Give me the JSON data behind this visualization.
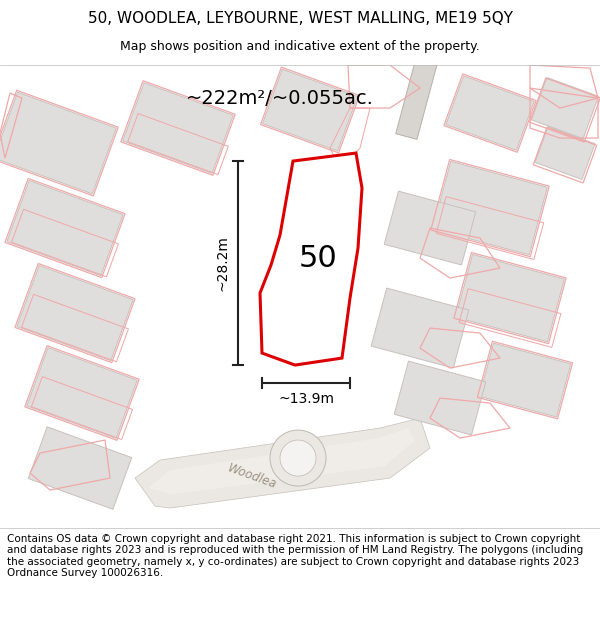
{
  "title": "50, WOODLEA, LEYBOURNE, WEST MALLING, ME19 5QY",
  "subtitle": "Map shows position and indicative extent of the property.",
  "footer": "Contains OS data © Crown copyright and database right 2021. This information is subject to Crown copyright and database rights 2023 and is reproduced with the permission of HM Land Registry. The polygons (including the associated geometry, namely x, y co-ordinates) are subject to Crown copyright and database rights 2023 Ordnance Survey 100026316.",
  "area_label": "~222m²/~0.055ac.",
  "width_label": "~13.9m",
  "height_label": "~28.2m",
  "plot_number": "50",
  "map_bg": "#ffffff",
  "building_fill": "#e0dedd",
  "building_edge": "#c8c0bc",
  "highlight_fill": "#ffffff",
  "highlight_edge": "#dd0000",
  "highlight_lw": 2.2,
  "plot_edge": "#f0a8a8",
  "plot_lw": 0.9,
  "dim_color": "#222222",
  "road_label": "Woodlea",
  "road_fill": "#e8e4e0",
  "title_fontsize": 11,
  "subtitle_fontsize": 9,
  "footer_fontsize": 7.5,
  "area_fontsize": 14,
  "plot_num_fontsize": 22,
  "dim_fontsize": 10
}
